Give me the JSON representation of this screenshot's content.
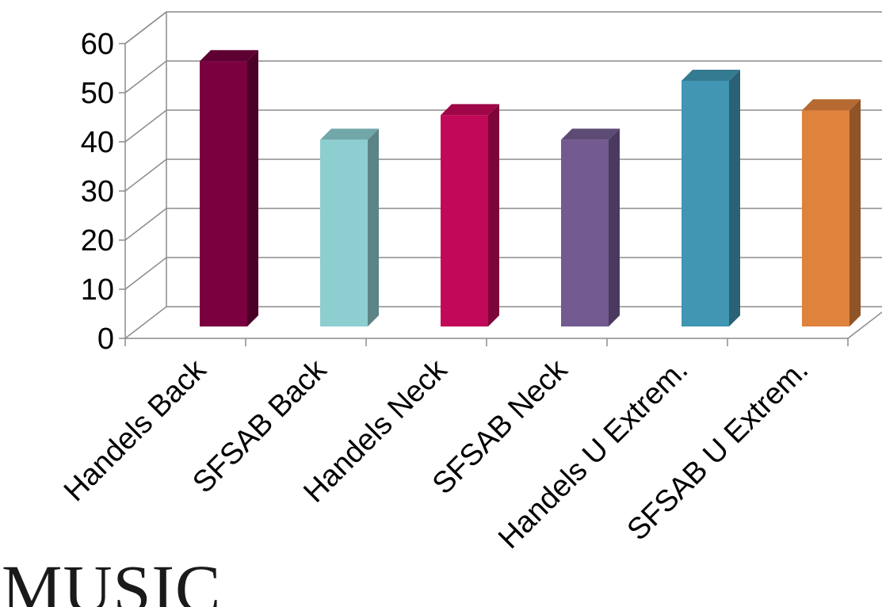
{
  "chart_data": {
    "type": "bar",
    "title": "",
    "xlabel": "",
    "ylabel": "",
    "categories": [
      "Handels Back",
      "SFSAB Back",
      "Handels Neck",
      "SFSAB Neck",
      "Handels U Extrem.",
      "SFSAB U Extrem."
    ],
    "values": [
      54,
      38,
      43,
      38,
      50,
      44
    ],
    "ylim": [
      0,
      60
    ],
    "yticks": [
      "0",
      "10",
      "20",
      "30",
      "40",
      "50",
      "60"
    ],
    "grid": true,
    "legend": "none",
    "style": "3d-column",
    "colors": [
      "#7a0040",
      "#8dced1",
      "#c20858",
      "#735b91",
      "#4197b3",
      "#de823c"
    ],
    "side_colors": [
      "#4a0027",
      "#5c8486",
      "#7d0538",
      "#4a3a5e",
      "#2a6174",
      "#8f5427"
    ],
    "top_colors": [
      "#5e0031",
      "#72a7aa",
      "#9e0648",
      "#5d4a75",
      "#347a91",
      "#b66a31"
    ]
  },
  "footer": {
    "text": "MUSIC"
  }
}
